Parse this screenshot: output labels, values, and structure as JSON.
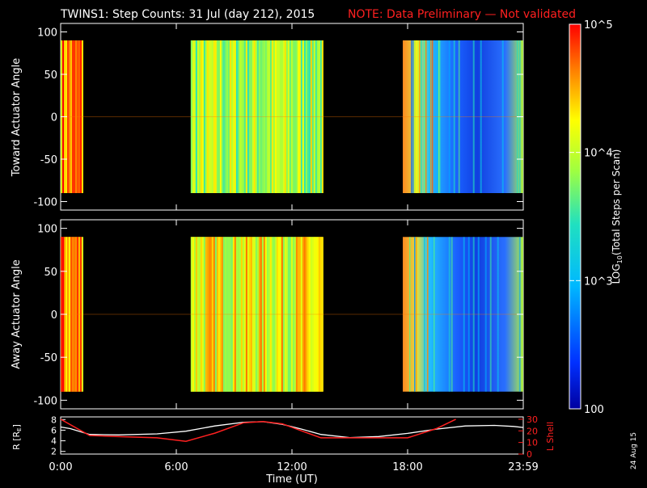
{
  "title": "TWINS1: Step Counts: 31 Jul (day 212), 2015",
  "note": "NOTE: Data Preliminary — Not validated",
  "date_stamp": "24 Aug 15",
  "colors": {
    "title": "#ffffff",
    "note": "#ff2020",
    "lshell": "#ff2020",
    "radius": "#ffffff"
  },
  "colorbar": {
    "label": "LOG10(Total Steps per Scan)",
    "scale": "log",
    "range": [
      100,
      100000
    ],
    "ticks": [
      {
        "value": 100000,
        "label": "10^5"
      },
      {
        "value": 10000,
        "label": "10^4"
      },
      {
        "value": 1000,
        "label": "10^3"
      },
      {
        "value": 100,
        "label": "100"
      }
    ]
  },
  "chart_data": [
    {
      "type": "heatmap",
      "ylabel": "Toward Actuator Angle",
      "ylim": [
        -110,
        110
      ],
      "yticks": [
        "100",
        "50",
        "0",
        "-50",
        "-100"
      ],
      "y_range": [
        -90,
        90
      ],
      "xlim_hours": [
        0,
        24
      ],
      "data_intervals_hours": [
        [
          0.0,
          1.1
        ],
        [
          6.75,
          13.6
        ],
        [
          17.75,
          24.0
        ]
      ],
      "intervals_mean_log10_counts": [
        4.6,
        3.9,
        3.0
      ]
    },
    {
      "type": "heatmap",
      "ylabel": "Away Actuator Angle",
      "ylim": [
        -110,
        110
      ],
      "yticks": [
        "100",
        "50",
        "0",
        "-50",
        "-100"
      ],
      "y_range": [
        -90,
        90
      ],
      "xlim_hours": [
        0,
        24
      ],
      "data_intervals_hours": [
        [
          0.0,
          1.1
        ],
        [
          6.75,
          13.6
        ],
        [
          17.75,
          24.0
        ]
      ],
      "intervals_mean_log10_counts": [
        4.6,
        4.2,
        3.1
      ]
    },
    {
      "type": "line",
      "xlabel": "Time (UT)",
      "xticks": [
        "0:00",
        "6:00",
        "12:00",
        "18:00",
        "23:59"
      ],
      "ylabel_left": "R [RE]",
      "ylabel_right": "L Shell",
      "yticks_left": [
        "8",
        "6",
        "4",
        "2"
      ],
      "yticks_right": [
        "30",
        "20",
        "10",
        "0"
      ],
      "ylim_left": [
        1.5,
        8.5
      ],
      "ylim_right": [
        0,
        32
      ],
      "series": [
        {
          "name": "R [RE]",
          "axis": "left",
          "x": [
            0,
            0.5,
            1.5,
            3,
            5,
            6.5,
            8,
            9.5,
            10.5,
            11.5,
            12.5,
            13.5,
            15,
            16.5,
            18,
            19.5,
            21,
            22.5,
            23.5,
            24
          ],
          "y": [
            6.6,
            6.3,
            5.2,
            5.1,
            5.3,
            5.8,
            6.8,
            7.5,
            7.6,
            7.1,
            6.2,
            5.2,
            4.6,
            4.8,
            5.4,
            6.2,
            6.8,
            6.9,
            6.7,
            6.5
          ]
        },
        {
          "name": "L Shell",
          "axis": "right",
          "x": [
            0,
            1.5,
            3,
            5,
            6.5,
            8,
            9.5,
            10.5,
            11.5,
            12.5,
            13.5,
            15,
            16.5,
            18,
            19.5,
            20.5
          ],
          "y": [
            30,
            16,
            15,
            14,
            11,
            18,
            27,
            28,
            26,
            20,
            14,
            14,
            14,
            14,
            22,
            30
          ]
        }
      ]
    }
  ]
}
